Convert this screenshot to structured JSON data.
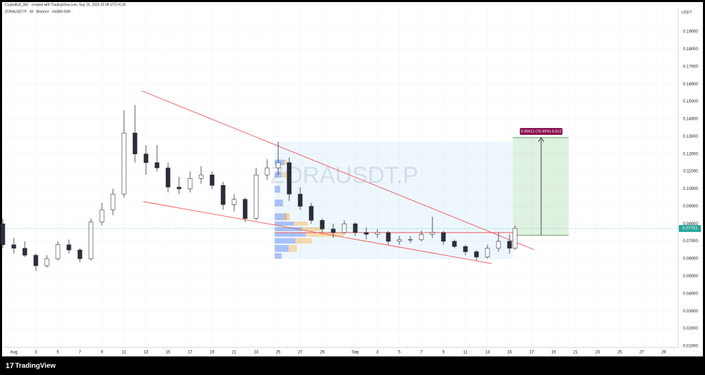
{
  "header": {
    "credit": "CryptoBull_360 · created with TradingView.com, Sep 15, 2025 20:08 UTC+5:30",
    "symbol_line": "ZORAUSDT.P · 4h · Binance · Vol368.92M",
    "watermark": "ZORAUSDT.P",
    "brand": "TradingView"
  },
  "chart_data": {
    "type": "candlestick",
    "currency": "USDT",
    "annotation": "0.05612 (76.95%) 5,612",
    "up_color": "#ffffff",
    "down_color": "#2a2e39",
    "price_line_color": "#26a69a",
    "grid": true,
    "x": [
      -1,
      0,
      1,
      2,
      3,
      4,
      5,
      6,
      7,
      8,
      9,
      10,
      11,
      12,
      13,
      14,
      15,
      16,
      17,
      18,
      19,
      20,
      21,
      22,
      23,
      24,
      25,
      26,
      27,
      28,
      29,
      30,
      31,
      32,
      33,
      34,
      35,
      36,
      37,
      38,
      39,
      40,
      41,
      42,
      43,
      44,
      45,
      45.5
    ],
    "open": [
      0.08,
      0.068,
      0.066,
      0.062,
      0.056,
      0.06,
      0.068,
      0.065,
      0.06,
      0.081,
      0.088,
      0.097,
      0.132,
      0.12,
      0.115,
      0.112,
      0.101,
      0.1,
      0.106,
      0.108,
      0.102,
      0.091,
      0.094,
      0.083,
      0.108,
      0.112,
      0.115,
      0.097,
      0.09,
      0.082,
      0.077,
      0.075,
      0.08,
      0.075,
      0.074,
      0.075,
      0.07,
      0.071,
      0.071,
      0.074,
      0.075,
      0.07,
      0.067,
      0.064,
      0.061,
      0.066,
      0.07,
      0.066
    ],
    "high": [
      0.083,
      0.072,
      0.07,
      0.063,
      0.062,
      0.07,
      0.071,
      0.066,
      0.083,
      0.092,
      0.1,
      0.145,
      0.148,
      0.125,
      0.125,
      0.115,
      0.107,
      0.11,
      0.113,
      0.11,
      0.104,
      0.097,
      0.095,
      0.112,
      0.117,
      0.127,
      0.118,
      0.101,
      0.092,
      0.083,
      0.08,
      0.082,
      0.081,
      0.078,
      0.077,
      0.076,
      0.073,
      0.073,
      0.076,
      0.084,
      0.076,
      0.071,
      0.068,
      0.065,
      0.068,
      0.075,
      0.074,
      0.079
    ],
    "low": [
      0.066,
      0.063,
      0.061,
      0.053,
      0.055,
      0.059,
      0.063,
      0.058,
      0.059,
      0.079,
      0.085,
      0.095,
      0.115,
      0.108,
      0.11,
      0.098,
      0.097,
      0.098,
      0.103,
      0.1,
      0.088,
      0.087,
      0.081,
      0.082,
      0.105,
      0.108,
      0.093,
      0.088,
      0.08,
      0.075,
      0.072,
      0.074,
      0.073,
      0.071,
      0.072,
      0.068,
      0.068,
      0.069,
      0.07,
      0.072,
      0.068,
      0.066,
      0.062,
      0.059,
      0.06,
      0.064,
      0.063,
      0.065
    ],
    "close": [
      0.068,
      0.066,
      0.062,
      0.056,
      0.06,
      0.068,
      0.065,
      0.06,
      0.081,
      0.088,
      0.097,
      0.132,
      0.12,
      0.115,
      0.112,
      0.101,
      0.1,
      0.106,
      0.108,
      0.102,
      0.091,
      0.094,
      0.083,
      0.108,
      0.112,
      0.115,
      0.097,
      0.09,
      0.082,
      0.077,
      0.075,
      0.08,
      0.075,
      0.074,
      0.075,
      0.07,
      0.071,
      0.071,
      0.074,
      0.075,
      0.07,
      0.067,
      0.064,
      0.061,
      0.066,
      0.07,
      0.066,
      0.07731
    ],
    "xlim": [
      -0.94,
      60.31
    ],
    "xticks": [
      {
        "value": 0,
        "label": "Aug"
      },
      {
        "value": 2,
        "label": "3"
      },
      {
        "value": 4,
        "label": "5"
      },
      {
        "value": 6,
        "label": "7"
      },
      {
        "value": 8,
        "label": "9"
      },
      {
        "value": 10,
        "label": "11"
      },
      {
        "value": 12,
        "label": "13"
      },
      {
        "value": 14,
        "label": "15"
      },
      {
        "value": 16,
        "label": "17"
      },
      {
        "value": 18,
        "label": "19"
      },
      {
        "value": 20,
        "label": "21"
      },
      {
        "value": 22,
        "label": "23"
      },
      {
        "value": 24,
        "label": "25"
      },
      {
        "value": 26,
        "label": "27"
      },
      {
        "value": 28,
        "label": "29"
      },
      {
        "value": 31,
        "label": "Sep"
      },
      {
        "value": 33,
        "label": "3"
      },
      {
        "value": 35,
        "label": "5"
      },
      {
        "value": 37,
        "label": "7"
      },
      {
        "value": 39,
        "label": "9"
      },
      {
        "value": 41,
        "label": "11"
      },
      {
        "value": 43,
        "label": "13"
      },
      {
        "value": 45,
        "label": "15"
      },
      {
        "value": 47,
        "label": "17"
      },
      {
        "value": 49,
        "label": "19"
      },
      {
        "value": 51,
        "label": "21"
      },
      {
        "value": 53,
        "label": "23"
      },
      {
        "value": 55,
        "label": "25"
      },
      {
        "value": 57,
        "label": "27"
      },
      {
        "value": 59,
        "label": "29"
      }
    ],
    "ylim": [
      0.0092,
      0.2034
    ],
    "yticks": [
      {
        "value": 0.01,
        "label": "0.01000"
      },
      {
        "value": 0.02,
        "label": "0.02000"
      },
      {
        "value": 0.03,
        "label": "0.03000"
      },
      {
        "value": 0.04,
        "label": "0.04000"
      },
      {
        "value": 0.05,
        "label": "0.05000"
      },
      {
        "value": 0.06,
        "label": "0.06000"
      },
      {
        "value": 0.07,
        "label": "0.07000"
      },
      {
        "value": 0.08,
        "label": "0.08000"
      },
      {
        "value": 0.09,
        "label": "0.09000"
      },
      {
        "value": 0.1,
        "label": "0.10000"
      },
      {
        "value": 0.11,
        "label": "0.11000"
      },
      {
        "value": 0.12,
        "label": "0.12000"
      },
      {
        "value": 0.13,
        "label": "0.13000"
      },
      {
        "value": 0.14,
        "label": "0.14000"
      },
      {
        "value": 0.15,
        "label": "0.15000"
      },
      {
        "value": 0.16,
        "label": "0.16000"
      },
      {
        "value": 0.17,
        "label": "0.17000"
      },
      {
        "value": 0.18,
        "label": "0.18000"
      },
      {
        "value": 0.19,
        "label": "0.19000"
      }
    ]
  }
}
